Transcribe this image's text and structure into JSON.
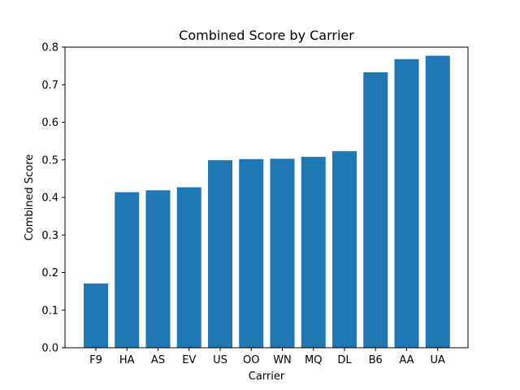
{
  "chart_data": {
    "type": "bar",
    "title": "Combined Score by Carrier",
    "xlabel": "Carrier",
    "ylabel": "Combined Score",
    "categories": [
      "F9",
      "HA",
      "AS",
      "EV",
      "US",
      "OO",
      "WN",
      "MQ",
      "DL",
      "B6",
      "AA",
      "UA"
    ],
    "values": [
      0.171,
      0.414,
      0.419,
      0.427,
      0.499,
      0.502,
      0.503,
      0.508,
      0.523,
      0.733,
      0.768,
      0.777
    ],
    "ylim": [
      0,
      0.8
    ],
    "yticks": [
      "0.0",
      "0.1",
      "0.2",
      "0.3",
      "0.4",
      "0.5",
      "0.6",
      "0.7",
      "0.8"
    ],
    "bar_color": "#1f77b4",
    "grid": false,
    "legend": "none"
  }
}
